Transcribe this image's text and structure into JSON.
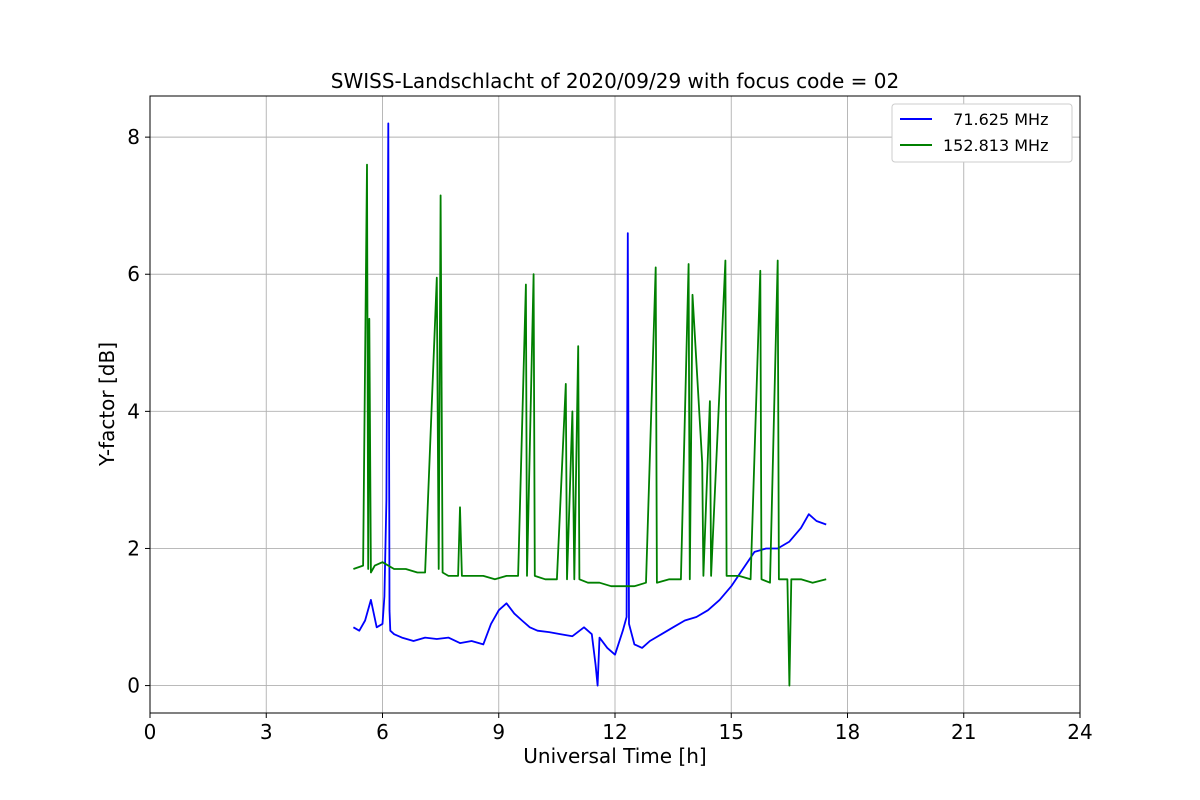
{
  "chart_data": {
    "type": "line",
    "title": "SWISS-Landschlacht of 2020/09/29 with focus code = 02",
    "xlabel": "Universal Time [h]",
    "ylabel": "Y-factor [dB]",
    "xlim": [
      0,
      24
    ],
    "ylim": [
      -0.4,
      8.6
    ],
    "xticks": [
      0,
      3,
      6,
      9,
      12,
      15,
      18,
      21,
      24
    ],
    "yticks": [
      0,
      2,
      4,
      6,
      8
    ],
    "grid": true,
    "legend_position": "top-right",
    "series": [
      {
        "name": "  71.625 MHz",
        "color": "#0000ff",
        "x": [
          5.25,
          5.4,
          5.55,
          5.7,
          5.85,
          6.0,
          6.05,
          6.1,
          6.15,
          6.18,
          6.2,
          6.3,
          6.5,
          6.8,
          7.1,
          7.4,
          7.7,
          8.0,
          8.3,
          8.6,
          8.8,
          9.0,
          9.2,
          9.4,
          9.6,
          9.8,
          10.0,
          10.3,
          10.6,
          10.9,
          11.2,
          11.4,
          11.5,
          11.55,
          11.6,
          11.8,
          12.0,
          12.2,
          12.3,
          12.33,
          12.36,
          12.5,
          12.7,
          12.9,
          13.2,
          13.5,
          13.8,
          14.1,
          14.4,
          14.7,
          15.0,
          15.3,
          15.6,
          15.9,
          16.2,
          16.5,
          16.8,
          17.0,
          17.2,
          17.45
        ],
        "y": [
          0.85,
          0.8,
          0.95,
          1.25,
          0.85,
          0.9,
          1.3,
          2.7,
          8.2,
          1.1,
          0.8,
          0.75,
          0.7,
          0.65,
          0.7,
          0.68,
          0.7,
          0.62,
          0.65,
          0.6,
          0.9,
          1.1,
          1.2,
          1.05,
          0.95,
          0.85,
          0.8,
          0.78,
          0.75,
          0.72,
          0.85,
          0.75,
          0.3,
          0.0,
          0.7,
          0.55,
          0.45,
          0.8,
          1.0,
          6.6,
          0.9,
          0.6,
          0.55,
          0.65,
          0.75,
          0.85,
          0.95,
          1.0,
          1.1,
          1.25,
          1.45,
          1.7,
          1.95,
          2.0,
          2.0,
          2.1,
          2.3,
          2.5,
          2.4,
          2.35
        ]
      },
      {
        "name": "152.813 MHz",
        "color": "#008000",
        "x": [
          5.25,
          5.5,
          5.6,
          5.63,
          5.66,
          5.7,
          5.8,
          6.0,
          6.3,
          6.6,
          6.9,
          7.1,
          7.4,
          7.45,
          7.5,
          7.55,
          7.7,
          7.95,
          8.0,
          8.05,
          8.3,
          8.55,
          8.6,
          8.9,
          9.2,
          9.5,
          9.7,
          9.73,
          9.9,
          9.93,
          10.2,
          10.5,
          10.73,
          10.76,
          10.9,
          10.95,
          11.05,
          11.08,
          11.3,
          11.6,
          11.9,
          12.2,
          12.5,
          12.8,
          13.05,
          13.08,
          13.4,
          13.7,
          13.9,
          13.93,
          14.0,
          14.25,
          14.28,
          14.45,
          14.48,
          14.85,
          14.88,
          15.2,
          15.5,
          15.75,
          15.78,
          16.0,
          16.2,
          16.23,
          16.45,
          16.5,
          16.55,
          16.8,
          17.1,
          17.45
        ],
        "y": [
          1.7,
          1.75,
          7.6,
          1.7,
          5.35,
          1.65,
          1.75,
          1.8,
          1.7,
          1.7,
          1.65,
          1.65,
          5.95,
          1.7,
          7.15,
          1.65,
          1.6,
          1.6,
          2.6,
          1.6,
          1.6,
          1.6,
          1.6,
          1.55,
          1.6,
          1.6,
          5.85,
          1.6,
          6.0,
          1.6,
          1.55,
          1.55,
          4.4,
          1.55,
          4.0,
          1.55,
          4.95,
          1.55,
          1.5,
          1.5,
          1.45,
          1.45,
          1.45,
          1.5,
          6.1,
          1.5,
          1.55,
          1.55,
          6.15,
          1.55,
          5.7,
          3.25,
          1.6,
          4.15,
          1.6,
          6.2,
          1.6,
          1.6,
          1.55,
          6.05,
          1.55,
          1.5,
          6.2,
          1.55,
          1.55,
          0.0,
          1.55,
          1.55,
          1.5,
          1.55
        ]
      }
    ]
  }
}
